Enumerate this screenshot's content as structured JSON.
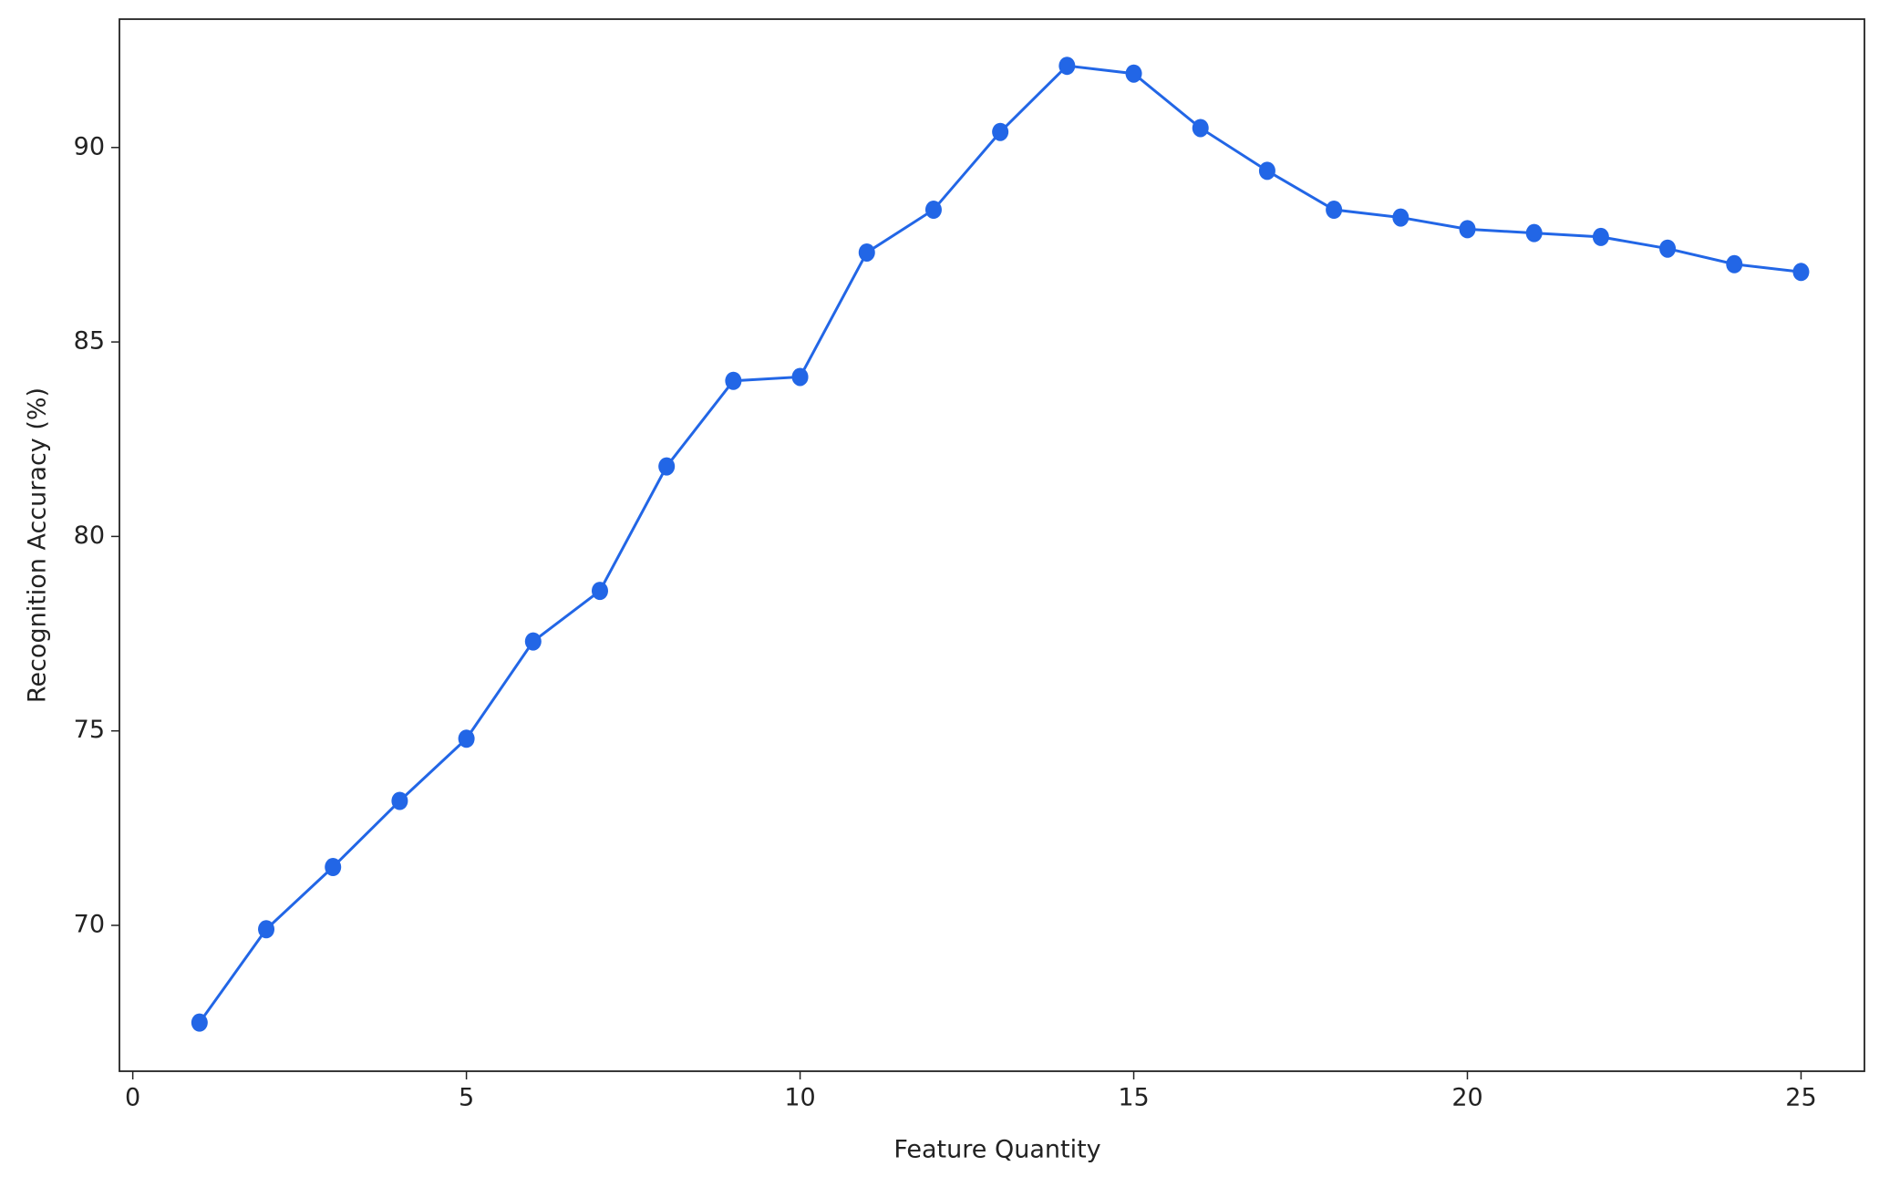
{
  "chart_data": {
    "type": "line",
    "x_label": "Feature Quantity",
    "y_label": "Recognition Accuracy (%)",
    "x": [
      1,
      2,
      3,
      4,
      5,
      6,
      7,
      8,
      9,
      10,
      11,
      12,
      13,
      14,
      15,
      16,
      17,
      18,
      19,
      20,
      21,
      22,
      23,
      24,
      25
    ],
    "series": [
      {
        "color": "#2266e6",
        "values": [
          67.5,
          69.9,
          71.5,
          73.2,
          74.8,
          77.3,
          78.6,
          81.8,
          84.0,
          84.1,
          87.3,
          88.4,
          90.4,
          92.1,
          91.9,
          90.5,
          89.4,
          88.4,
          88.2,
          87.9,
          87.8,
          87.7,
          87.4,
          87.0,
          86.8
        ]
      }
    ],
    "xlim": [
      -0.2,
      25.95
    ],
    "xticks": [
      0,
      5,
      10,
      15,
      20,
      25
    ],
    "ylim": [
      66.25,
      93.3
    ],
    "yticks": [
      70,
      75,
      80,
      85,
      90
    ],
    "markers": true
  }
}
